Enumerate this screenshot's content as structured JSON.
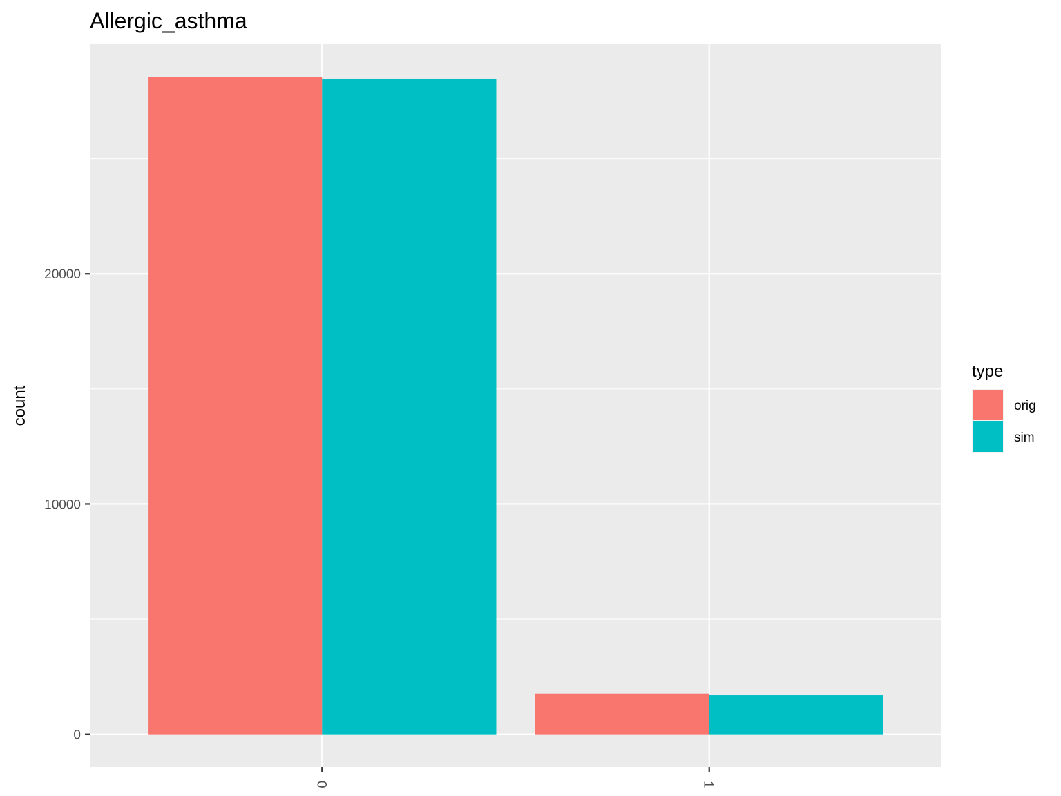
{
  "chart_data": {
    "type": "bar",
    "title": "Allergic_asthma",
    "xlabel": "",
    "ylabel": "count",
    "categories": [
      "0",
      "1"
    ],
    "series": [
      {
        "name": "orig",
        "values": [
          28540,
          1770
        ],
        "color": "#F8766D"
      },
      {
        "name": "sim",
        "values": [
          28470,
          1700
        ],
        "color": "#00BFC4"
      }
    ],
    "ylim": [
      -1420,
      30000
    ],
    "yticks": [
      0,
      10000,
      20000
    ],
    "ytick_labels": [
      "0",
      "10000",
      "20000"
    ],
    "y_minor_ticks": [
      5000,
      15000,
      25000
    ],
    "grid": true,
    "legend": {
      "title": "type",
      "position": "right"
    },
    "x_tick_rotation": "vertical"
  }
}
